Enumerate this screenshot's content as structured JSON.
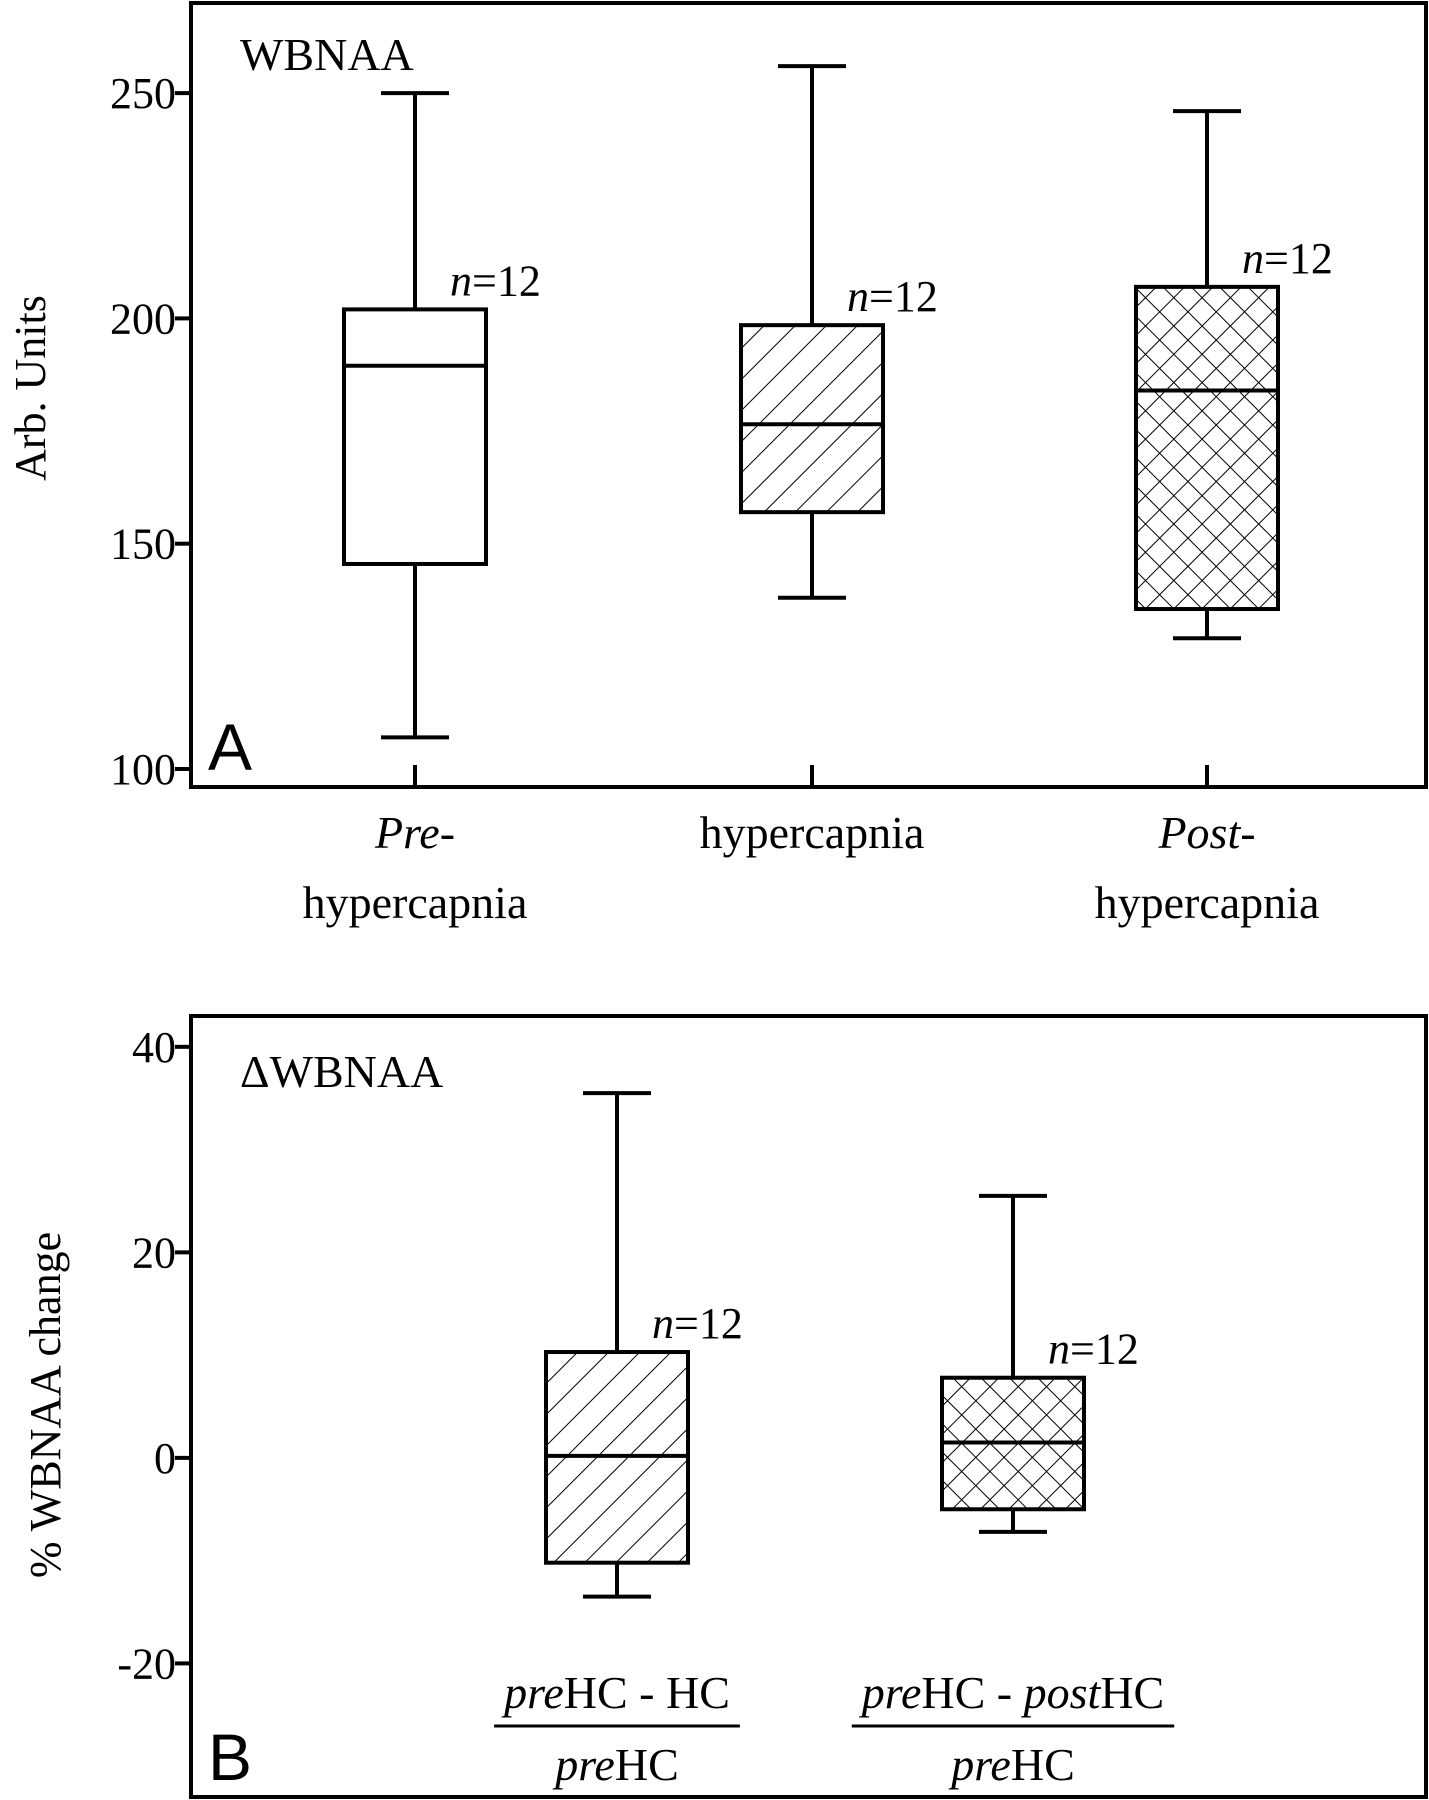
{
  "chart_data": [
    {
      "type": "box",
      "panel_letter": "A",
      "inset_label": "WBNAA",
      "ylabel": "Arb. Units",
      "ylim": [
        96,
        270
      ],
      "yticks": [
        "100",
        "150",
        "200",
        "250"
      ],
      "ytick_values": [
        100,
        150,
        200,
        250
      ],
      "categories": [
        {
          "lines": [
            [
              {
                "text": "Pre",
                "italic": true
              },
              {
                "text": "-",
                "italic": false
              }
            ],
            [
              {
                "text": "hypercapnia",
                "italic": false
              }
            ]
          ]
        },
        {
          "lines": [
            [
              {
                "text": "hypercapnia",
                "italic": false
              }
            ]
          ]
        },
        {
          "lines": [
            [
              {
                "text": "Post",
                "italic": true
              },
              {
                "text": "-",
                "italic": false
              }
            ],
            [
              {
                "text": "hypercapnia",
                "italic": false
              }
            ]
          ]
        }
      ],
      "series": [
        {
          "min": 107,
          "q1": 145.5,
          "median": 189.5,
          "q3": 202,
          "max": 250,
          "pattern": "none",
          "n_label": "=12"
        },
        {
          "min": 138,
          "q1": 157,
          "median": 176.5,
          "q3": 198.5,
          "max": 256,
          "pattern": "hatch",
          "n_label": "=12"
        },
        {
          "min": 129,
          "q1": 135.5,
          "median": 184,
          "q3": 207,
          "max": 246,
          "pattern": "crosshatch",
          "n_label": "=12"
        }
      ]
    },
    {
      "type": "box",
      "panel_letter": "B",
      "inset_label": "ΔWBNAA",
      "ylabel": "% WBNAA change",
      "ylim": [
        -33,
        43
      ],
      "yticks": [
        "40",
        "20",
        "0",
        "-20"
      ],
      "ytick_values": [
        40,
        20,
        0,
        -20
      ],
      "categories": [
        {
          "numerator": [
            {
              "text": "pre",
              "italic": true
            },
            {
              "text": "HC - HC",
              "italic": false
            }
          ],
          "denominator": [
            {
              "text": "pre",
              "italic": true
            },
            {
              "text": "HC",
              "italic": false
            }
          ]
        },
        {
          "numerator": [
            {
              "text": "pre",
              "italic": true
            },
            {
              "text": "HC - ",
              "italic": false
            },
            {
              "text": "post",
              "italic": true
            },
            {
              "text": "HC",
              "italic": false
            }
          ],
          "denominator": [
            {
              "text": "pre",
              "italic": true
            },
            {
              "text": "HC",
              "italic": false
            }
          ]
        }
      ],
      "series": [
        {
          "min": -13.5,
          "q1": -10.2,
          "median": 0.2,
          "q3": 10.3,
          "max": 35.5,
          "pattern": "hatch",
          "n_label": "=12"
        },
        {
          "min": -7.2,
          "q1": -5,
          "median": 1.5,
          "q3": 7.8,
          "max": 25.5,
          "pattern": "crosshatch",
          "n_label": "=12"
        }
      ]
    }
  ]
}
